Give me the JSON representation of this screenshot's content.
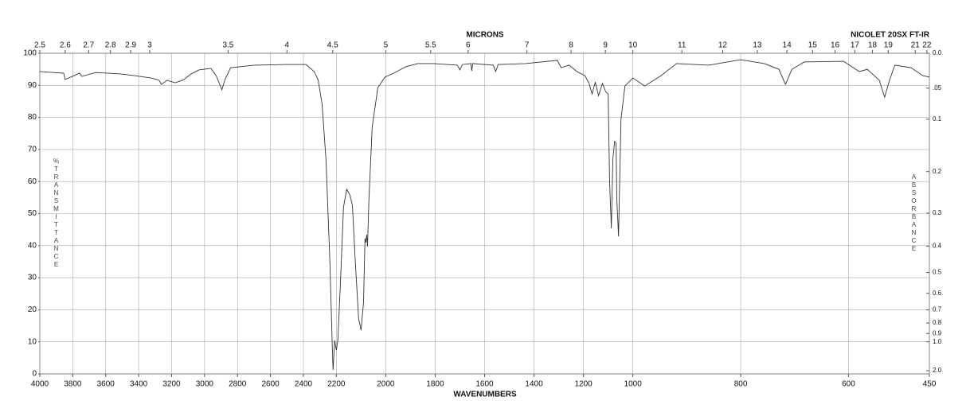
{
  "chart_data": {
    "type": "line",
    "title": "NICOLET 20SX FT-IR",
    "x_label": "WAVENUMBERS",
    "y_label": "%TRANSMITTANCE",
    "y2_label": "ABSORBANCE",
    "top_axis": {
      "label": "MICRONS",
      "ticks": [
        2.5,
        2.6,
        2.7,
        2.8,
        2.9,
        3,
        3.5,
        4,
        4.5,
        5,
        5.5,
        6,
        7,
        8,
        9,
        10,
        11,
        12,
        13,
        14,
        15,
        16,
        17,
        18,
        19,
        21,
        22
      ]
    },
    "xlim": [
      4000,
      450
    ],
    "xscale": "piecewise",
    "xbreaks": [
      2200,
      1000
    ],
    "xticks": [
      4000,
      3800,
      3600,
      3400,
      3200,
      3000,
      2800,
      2600,
      2400,
      2200,
      2000,
      1800,
      1600,
      1400,
      1200,
      1000,
      800,
      600,
      450
    ],
    "ylim": [
      0,
      100
    ],
    "yticks": [
      0,
      10,
      20,
      30,
      40,
      50,
      60,
      70,
      80,
      90,
      100
    ],
    "y2scale": "absorbance",
    "y2ticks": [
      {
        "value": 0,
        "label": "0.0"
      },
      {
        "value": 0.05,
        "label": ".05"
      },
      0.1,
      0.2,
      0.3,
      0.4,
      0.5,
      0.6,
      0.7,
      0.8,
      0.9,
      {
        "value": 1,
        "label": "1.0"
      },
      {
        "value": 2,
        "label": "2.0"
      }
    ],
    "grid": true,
    "color": "#333333",
    "x": [
      4000,
      3855,
      3846,
      3759,
      3744,
      3662,
      3517,
      3421,
      3324,
      3276,
      3262,
      3228,
      3180,
      3131,
      3083,
      3035,
      2962,
      2929,
      2895,
      2876,
      2842,
      2697,
      2504,
      2384,
      2335,
      2311,
      2287,
      2263,
      2239,
      2224,
      2220,
      2210,
      2200,
      2194,
      2184,
      2171,
      2158,
      2145,
      2135,
      2123,
      2110,
      2100,
      2090,
      2084,
      2081,
      2077,
      2074,
      2068,
      2055,
      2032,
      2003,
      1968,
      1919,
      1871,
      1806,
      1710,
      1700,
      1690,
      1655,
      1652,
      1648,
      1565,
      1555,
      1545,
      1435,
      1306,
      1290,
      1258,
      1226,
      1194,
      1177,
      1165,
      1152,
      1139,
      1123,
      1110,
      1100,
      1094,
      1087,
      1081,
      1074,
      1068,
      1065,
      1058,
      1048,
      1032,
      1000,
      978,
      948,
      919,
      859,
      800,
      756,
      729,
      717,
      705,
      682,
      609,
      580,
      565,
      543,
      533,
      524,
      514,
      484,
      462,
      450
    ],
    "values": [
      94.3,
      93.8,
      91.8,
      93.8,
      92.8,
      94,
      93.6,
      93,
      92.3,
      91.6,
      90.3,
      91.6,
      90.8,
      91.6,
      93.5,
      94.8,
      95.3,
      93,
      88.6,
      91.8,
      95.5,
      96.3,
      96.5,
      96.5,
      94.3,
      91.8,
      84.4,
      67,
      34.7,
      7.4,
      1.2,
      10.4,
      7.4,
      10.4,
      27.3,
      52,
      57.6,
      55.8,
      52.6,
      34.7,
      17.4,
      13.6,
      22.3,
      42.2,
      41,
      43.4,
      39.7,
      54.6,
      76.9,
      89.3,
      92.6,
      93.8,
      95.8,
      96.8,
      96.8,
      96.3,
      94.8,
      96.5,
      96.8,
      94.5,
      96.8,
      96.3,
      94.3,
      96.5,
      96.8,
      97.8,
      95.5,
      96.3,
      94.3,
      93,
      90.6,
      87.3,
      91,
      86.8,
      90.6,
      88,
      87.3,
      59.6,
      45.4,
      67,
      72.5,
      72,
      54.6,
      42.9,
      79.4,
      89.8,
      92.3,
      89.8,
      93,
      96.8,
      96.3,
      98,
      96.8,
      95,
      90.3,
      95,
      97.3,
      97.5,
      94.3,
      95,
      91.6,
      86.3,
      91.6,
      96.3,
      95.5,
      93,
      92.6
    ]
  }
}
